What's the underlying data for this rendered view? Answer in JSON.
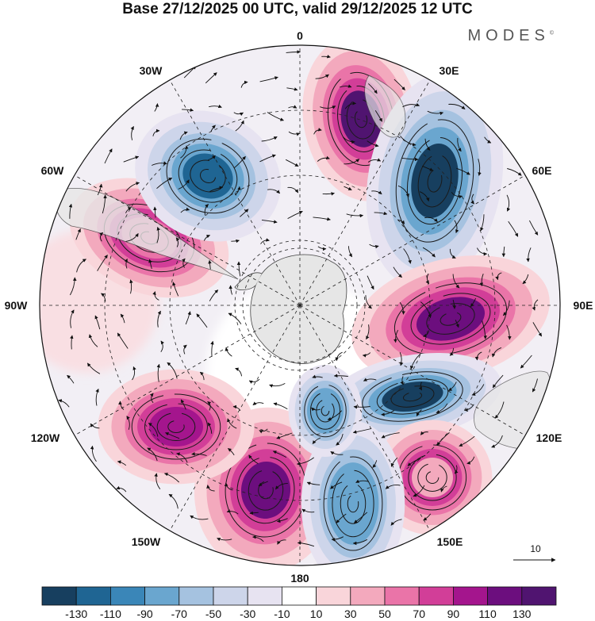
{
  "title": "Base 27/12/2025 00 UTC, valid 29/12/2025 12 UTC",
  "brand": {
    "name": "MODES",
    "mark": "©"
  },
  "map": {
    "projection": "south-polar-stereographic",
    "longitude_labels": [
      "0",
      "30E",
      "60E",
      "90E",
      "120E",
      "150E",
      "180",
      "150W",
      "120W",
      "90W",
      "60W",
      "30W"
    ]
  },
  "vector_legend": {
    "value": "10"
  },
  "colorbar": {
    "levels": [
      "-130",
      "-110",
      "-90",
      "-70",
      "-50",
      "-30",
      "-10",
      "10",
      "30",
      "50",
      "70",
      "90",
      "110",
      "130"
    ],
    "colors": [
      "#173f5f",
      "#1f6593",
      "#3a86b8",
      "#6aa6cf",
      "#a5c2e0",
      "#cdd5ea",
      "#e7e3f1",
      "#ffffff",
      "#f9d5da",
      "#f3a9bd",
      "#ea74a8",
      "#d23e98",
      "#a4158d",
      "#6c0e7e",
      "#501470"
    ]
  },
  "anomalies": [
    {
      "label": "+",
      "color": "#501470"
    },
    {
      "label": "-",
      "color": "#173f5f"
    },
    {
      "label": "+",
      "color": "#6c0e7e"
    },
    {
      "label": "-",
      "color": "#173f5f"
    },
    {
      "label": "+",
      "color": "#ea74a8"
    },
    {
      "label": "-",
      "color": "#1f6593"
    },
    {
      "label": "+",
      "color": "#6c0e7e"
    },
    {
      "label": "+",
      "color": "#f3a9bd"
    },
    {
      "label": "-",
      "color": "#6aa6cf"
    },
    {
      "label": "+",
      "color": "#a4158d"
    },
    {
      "label": "-",
      "color": "#6aa6cf"
    }
  ]
}
